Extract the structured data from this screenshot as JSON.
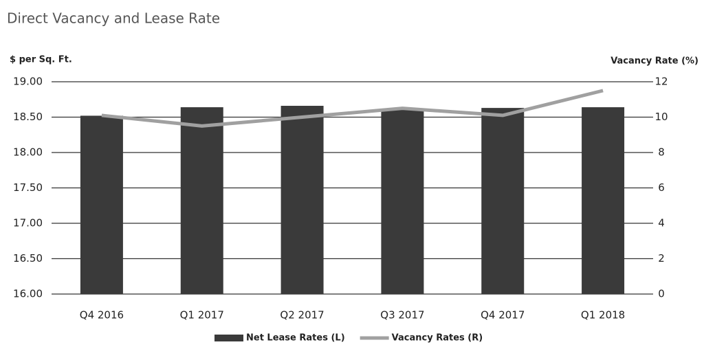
{
  "chart_data": {
    "type": "bar",
    "title": "Direct Vacancy and Lease Rate",
    "y_label": "$ per Sq. Ft.",
    "y2_label": "Vacancy Rate (%)",
    "categories": [
      "Q4 2016",
      "Q1 2017",
      "Q2 2017",
      "Q3 2017",
      "Q4 2017",
      "Q1 2018"
    ],
    "series": [
      {
        "name": "Net Lease Rates (L)",
        "type": "bar",
        "color": "#3a3a3a",
        "values": [
          18.52,
          18.64,
          18.66,
          18.62,
          18.63,
          18.64
        ]
      },
      {
        "name": "Vacancy Rates (R)",
        "type": "line",
        "axis": "y2",
        "color": "#a0a0a0",
        "values": [
          10.1,
          9.5,
          10.0,
          10.5,
          10.1,
          11.5
        ]
      }
    ],
    "ylim": [
      16,
      19
    ],
    "yticks": [
      {
        "value": 16,
        "label": "16.00"
      },
      {
        "value": 16.5,
        "label": "16.50"
      },
      {
        "value": 17,
        "label": "17.00"
      },
      {
        "value": 17.5,
        "label": "17.50"
      },
      {
        "value": 18,
        "label": "18.00"
      },
      {
        "value": 18.5,
        "label": "18.50"
      },
      {
        "value": 19,
        "label": "19.00"
      }
    ],
    "y2lim": [
      0,
      12
    ],
    "y2ticks": [
      0,
      2,
      4,
      6,
      8,
      10,
      12
    ],
    "grid": true,
    "legend": "bottom"
  }
}
